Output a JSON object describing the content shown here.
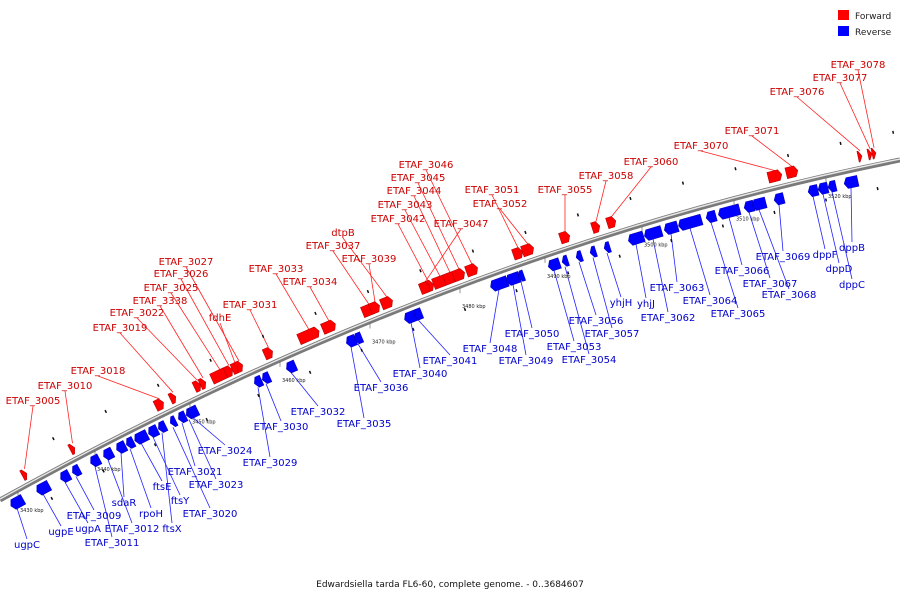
{
  "caption": "Edwardsiella tarda FL6-60, complete genome. - 0..3684607",
  "colors": {
    "forward": "#ff0000",
    "reverse": "#0000ff",
    "forward_label": "#cc0000",
    "reverse_label": "#0000cc",
    "backbone": "#999999"
  },
  "legend": [
    {
      "label": "Forward",
      "color": "#ff0000"
    },
    {
      "label": "Reverse",
      "color": "#0000ff"
    }
  ],
  "ticks": [
    "3430 kbp",
    "3440 kbp",
    "3450 kbp",
    "3460 kbp",
    "3470 kbp",
    "3480 kbp",
    "3490 kbp",
    "3500 kbp",
    "3510 kbp",
    "3520 kbp"
  ],
  "forward_genes": [
    "ETAF_3005",
    "ETAF_3010",
    "ETAF_3018",
    "ETAF_3019",
    "ETAF_3022",
    "ETAF_3338",
    "ETAF_3025",
    "ETAF_3026",
    "ETAF_3027",
    "fdhE",
    "ETAF_3031",
    "ETAF_3033",
    "ETAF_3034",
    "ETAF_3037",
    "dtpB",
    "ETAF_3039",
    "ETAF_3042",
    "ETAF_3043",
    "ETAF_3044",
    "ETAF_3045",
    "ETAF_3046",
    "ETAF_3047",
    "ETAF_3051",
    "ETAF_3052",
    "ETAF_3055",
    "ETAF_3058",
    "ETAF_3060",
    "ETAF_3070",
    "ETAF_3071",
    "ETAF_3076",
    "ETAF_3077",
    "ETAF_3078"
  ],
  "reverse_genes": [
    "ugpC",
    "ugpE",
    "ugpA",
    "ETAF_3009",
    "ETAF_3011",
    "ETAF_3012",
    "sdaR",
    "rpoH",
    "ftsE",
    "ftsY",
    "ftsX",
    "ETAF_3020",
    "ETAF_3021",
    "ETAF_3023",
    "ETAF_3024",
    "ETAF_3029",
    "ETAF_3030",
    "ETAF_3032",
    "ETAF_3035",
    "ETAF_3036",
    "ETAF_3040",
    "ETAF_3041",
    "ETAF_3048",
    "ETAF_3049",
    "ETAF_3050",
    "ETAF_3053",
    "ETAF_3054",
    "ETAF_3056",
    "ETAF_3057",
    "yhjH",
    "yhjJ",
    "ETAF_3062",
    "ETAF_3063",
    "ETAF_3064",
    "ETAF_3065",
    "ETAF_3066",
    "ETAF_3067",
    "ETAF_3068",
    "ETAF_3069",
    "dppF",
    "dppD",
    "dppC",
    "dppB"
  ]
}
